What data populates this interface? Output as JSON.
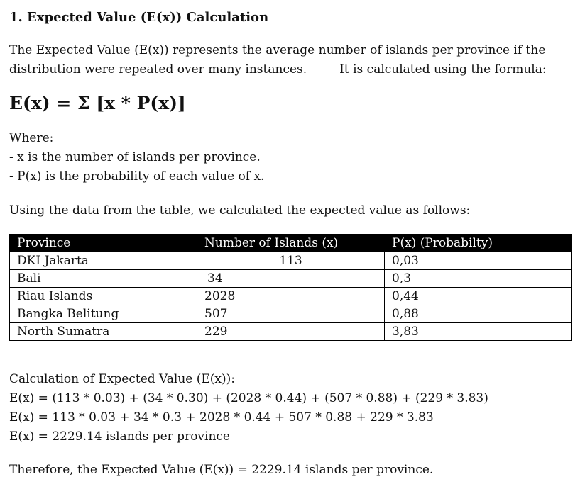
{
  "heading": "1. Expected Value (E(x)) Calculation",
  "intro": {
    "part1": "The Expected Value (E(x)) represents the average number of islands per province if the distribution were repeated over many instances.",
    "part2": "It is calculated using the formula:"
  },
  "formula": "E(x) = Σ [x * P(x)]",
  "where": {
    "title": "Where:",
    "items": [
      "- x is the number of islands per province.",
      "- P(x) is the probability of each value of x."
    ]
  },
  "using_text": "Using the data from the table, we calculated the expected value as follows:",
  "table": {
    "headers": [
      "Province",
      "Number of Islands (x)",
      "P(x) (Probabilty)"
    ],
    "rows": [
      [
        "DKI Jakarta",
        "113",
        "0,03"
      ],
      [
        "Bali",
        "34",
        "0,3"
      ],
      [
        "Riau Islands",
        "2028",
        "0,44"
      ],
      [
        "Bangka Belitung",
        "507",
        "0,88"
      ],
      [
        "North Sumatra",
        "229",
        "3,83"
      ]
    ]
  },
  "calculation": {
    "title": "Calculation of Expected Value (E(x)):",
    "lines": [
      "E(x) = (113 * 0.03) + (34 * 0.30) + (2028 * 0.44) + (507 * 0.88) + (229 * 3.83)",
      "E(x) = 113 * 0.03 + 34 * 0.3 + 2028 * 0.44 + 507 * 0.88 + 229 * 3.83",
      "E(x) = 2229.14 islands per province"
    ]
  },
  "conclusion": "Therefore, the Expected Value (E(x)) = 2229.14 islands per province."
}
